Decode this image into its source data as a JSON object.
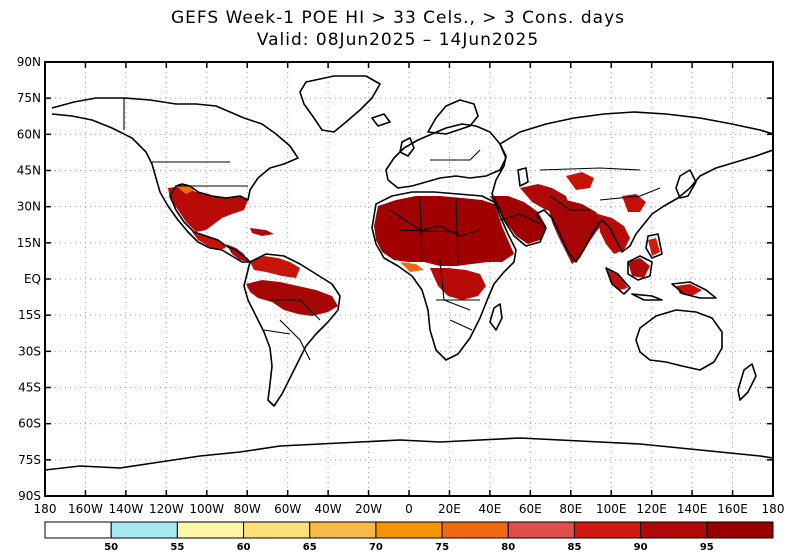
{
  "title": {
    "line1": "GEFS Week-1 POE HI > 33 Cels., > 3 Cons. days",
    "line2": "Valid: 08Jun2025 – 14Jun2025"
  },
  "axes": {
    "y_labels": [
      "90N",
      "75N",
      "60N",
      "45N",
      "30N",
      "15N",
      "EQ",
      "15S",
      "30S",
      "45S",
      "60S",
      "75S",
      "90S"
    ],
    "x_labels": [
      "180",
      "160W",
      "140W",
      "120W",
      "100W",
      "80W",
      "60W",
      "40W",
      "20W",
      "0",
      "20E",
      "40E",
      "60E",
      "80E",
      "100E",
      "120E",
      "140E",
      "160E",
      "180"
    ]
  },
  "colorbar": {
    "bins": [
      {
        "color": "#ffffff"
      },
      {
        "color": "#a8e8f4"
      },
      {
        "color": "#fff5a8"
      },
      {
        "color": "#fddf7a"
      },
      {
        "color": "#f7b94a"
      },
      {
        "color": "#f59300"
      },
      {
        "color": "#f06a14"
      },
      {
        "color": "#e0504a"
      },
      {
        "color": "#d01a10"
      },
      {
        "color": "#b00a08"
      },
      {
        "color": "#960000"
      }
    ],
    "labels": [
      "50",
      "55",
      "60",
      "65",
      "70",
      "75",
      "80",
      "85",
      "90",
      "95"
    ]
  },
  "palette": {
    "heat_low": "#f59300",
    "heat_mid": "#d01a10",
    "heat_high": "#a00000",
    "coast": "#000000",
    "grid": "#a0a0a0"
  }
}
